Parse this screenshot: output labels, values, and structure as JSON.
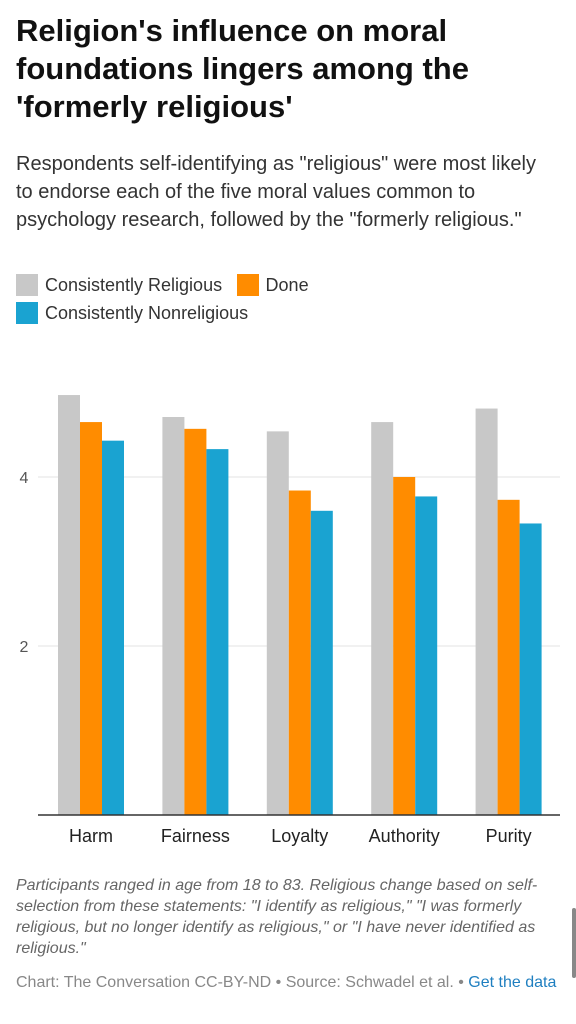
{
  "title": "Religion's influence on moral foundations lingers among the 'formerly religious'",
  "subtitle": "Respondents self-identifying as \"religious\" were most likely to endorse each of the five moral values common to psychology research, followed by the \"formerly religious.\"",
  "legend": [
    {
      "label": "Consistently Religious",
      "color": "#c8c8c8"
    },
    {
      "label": "Done",
      "color": "#ff8c00"
    },
    {
      "label": "Consistently Nonreligious",
      "color": "#1aa3d1"
    }
  ],
  "chart_data": {
    "type": "bar",
    "categories": [
      "Harm",
      "Fairness",
      "Loyalty",
      "Authority",
      "Purity"
    ],
    "series": [
      {
        "name": "Consistently Religious",
        "color": "#c8c8c8",
        "values": [
          4.97,
          4.71,
          4.54,
          4.65,
          4.81
        ]
      },
      {
        "name": "Done",
        "color": "#ff8c00",
        "values": [
          4.65,
          4.57,
          3.84,
          4.0,
          3.73
        ]
      },
      {
        "name": "Consistently Nonreligious",
        "color": "#1aa3d1",
        "values": [
          4.43,
          4.33,
          3.6,
          3.77,
          3.45
        ]
      }
    ],
    "yticks": [
      2,
      4
    ],
    "ylim": [
      0,
      5.2
    ],
    "grid": true,
    "legend_position": "top-left"
  },
  "notes": "Participants ranged in age from 18 to 83. Religious change based on self-selection from these statements: \"I identify as religious,\" \"I was formerly religious, but no longer identify as religious,\" or \"I have never identified as religious.\"",
  "source": {
    "text": "Chart: The Conversation CC-BY-ND • Source: Schwadel et al. • ",
    "link": "Get the data"
  }
}
